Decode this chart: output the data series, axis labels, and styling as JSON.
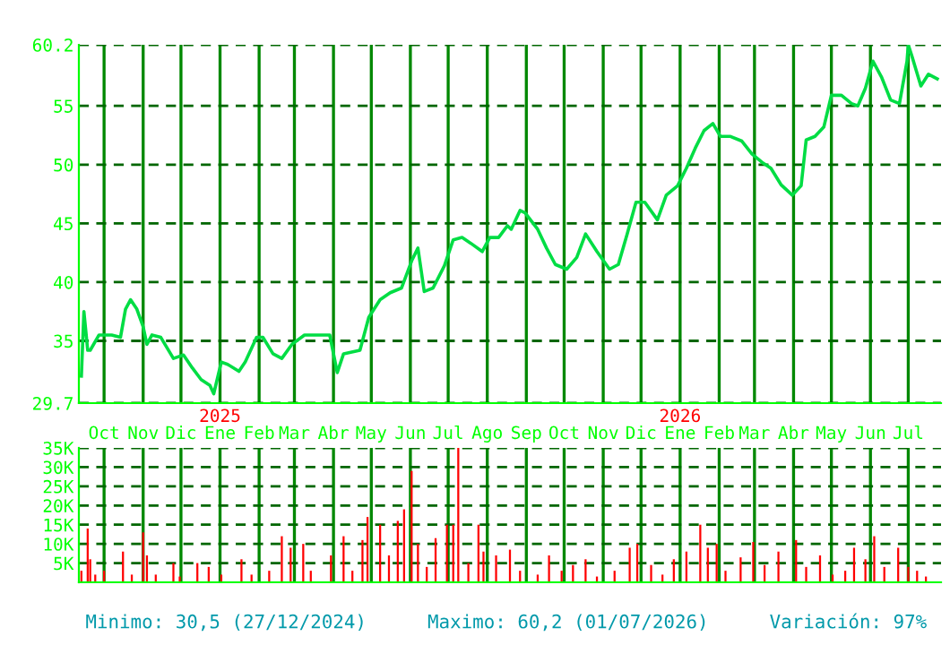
{
  "chart_data": [
    {
      "type": "line",
      "x": [
        "2024-09-13",
        "2024-09-15",
        "2024-09-18",
        "2024-09-20",
        "2024-09-27",
        "2024-10-07",
        "2024-10-14",
        "2024-10-18",
        "2024-10-22",
        "2024-10-27",
        "2024-11-01",
        "2024-11-04",
        "2024-11-08",
        "2024-11-15",
        "2024-11-25",
        "2024-12-03",
        "2024-12-10",
        "2024-12-17",
        "2024-12-24",
        "2024-12-27",
        "2025-01-02",
        "2025-01-07",
        "2025-01-16",
        "2025-01-21",
        "2025-01-30",
        "2025-02-04",
        "2025-02-12",
        "2025-02-19",
        "2025-02-27",
        "2025-03-09",
        "2025-03-21",
        "2025-03-29",
        "2025-04-04",
        "2025-04-09",
        "2025-04-22",
        "2025-04-29",
        "2025-05-08",
        "2025-05-16",
        "2025-05-25",
        "2025-06-02",
        "2025-06-07",
        "2025-06-12",
        "2025-06-19",
        "2025-06-28",
        "2025-07-05",
        "2025-07-12",
        "2025-07-19",
        "2025-07-28",
        "2025-08-03",
        "2025-08-10",
        "2025-08-17",
        "2025-08-20",
        "2025-08-27",
        "2025-08-31",
        "2025-09-10",
        "2025-09-17",
        "2025-09-24",
        "2025-10-03",
        "2025-10-11",
        "2025-10-18",
        "2025-10-27",
        "2025-11-06",
        "2025-11-13",
        "2025-11-20",
        "2025-11-27",
        "2025-12-04",
        "2025-12-14",
        "2025-12-21",
        "2025-12-30",
        "2026-01-06",
        "2026-01-13",
        "2026-01-20",
        "2026-01-27",
        "2026-02-02",
        "2026-02-10",
        "2026-02-19",
        "2026-02-27",
        "2026-03-07",
        "2026-03-14",
        "2026-03-22",
        "2026-03-31",
        "2026-04-07",
        "2026-04-11",
        "2026-04-18",
        "2026-04-25",
        "2026-05-01",
        "2026-05-09",
        "2026-05-17",
        "2026-05-22",
        "2026-05-28",
        "2026-06-03",
        "2026-06-10",
        "2026-06-17",
        "2026-06-24",
        "2026-06-30",
        "2026-07-01",
        "2026-07-04",
        "2026-07-11",
        "2026-07-17",
        "2026-07-24"
      ],
      "series": [
        {
          "color": "#00dd44",
          "values": [
            32.0,
            37.5,
            34.2,
            34.2,
            35.5,
            35.5,
            35.3,
            37.7,
            38.5,
            37.7,
            36.2,
            34.7,
            35.5,
            35.3,
            33.5,
            33.8,
            32.7,
            31.7,
            31.2,
            30.5,
            33.2,
            33.0,
            32.4,
            33.2,
            35.3,
            35.3,
            33.9,
            33.5,
            34.7,
            35.5,
            35.5,
            35.5,
            32.3,
            33.9,
            34.2,
            37.0,
            38.5,
            39.1,
            39.5,
            41.8,
            42.9,
            39.2,
            39.5,
            41.4,
            43.6,
            43.8,
            43.3,
            42.6,
            43.8,
            43.8,
            44.8,
            44.5,
            46.1,
            45.9,
            44.5,
            42.9,
            41.5,
            41.1,
            42.1,
            44.1,
            42.6,
            41.1,
            41.5,
            44.1,
            46.8,
            46.8,
            45.3,
            47.4,
            48.2,
            49.7,
            51.4,
            52.9,
            53.5,
            52.4,
            52.4,
            52.0,
            50.9,
            50.2,
            49.7,
            48.3,
            47.4,
            48.2,
            52.1,
            52.4,
            53.2,
            55.9,
            55.9,
            55.2,
            55.0,
            56.5,
            58.8,
            57.4,
            55.5,
            55.2,
            58.8,
            60.2,
            59.2,
            56.7,
            57.7,
            57.3
          ]
        }
      ],
      "xlim": [
        "2024-09-11",
        "2026-07-27"
      ],
      "xticks": [
        {
          "value": "2024-10-01",
          "label": "Oct"
        },
        {
          "value": "2024-11-01",
          "label": "Nov"
        },
        {
          "value": "2024-12-01",
          "label": "Dic"
        },
        {
          "value": "2025-01-01",
          "label": "Ene"
        },
        {
          "value": "2025-02-01",
          "label": "Feb"
        },
        {
          "value": "2025-03-01",
          "label": "Mar"
        },
        {
          "value": "2025-04-01",
          "label": "Abr"
        },
        {
          "value": "2025-05-01",
          "label": "May"
        },
        {
          "value": "2025-06-01",
          "label": "Jun"
        },
        {
          "value": "2025-07-01",
          "label": "Jul"
        },
        {
          "value": "2025-08-01",
          "label": "Ago"
        },
        {
          "value": "2025-09-01",
          "label": "Sep"
        },
        {
          "value": "2025-10-01",
          "label": "Oct"
        },
        {
          "value": "2025-11-01",
          "label": "Nov"
        },
        {
          "value": "2025-12-01",
          "label": "Dic"
        },
        {
          "value": "2026-01-01",
          "label": "Ene"
        },
        {
          "value": "2026-02-01",
          "label": "Feb"
        },
        {
          "value": "2026-03-01",
          "label": "Mar"
        },
        {
          "value": "2026-04-01",
          "label": "Abr"
        },
        {
          "value": "2026-05-01",
          "label": "May"
        },
        {
          "value": "2026-06-01",
          "label": "Jun"
        },
        {
          "value": "2026-07-01",
          "label": "Jul"
        }
      ],
      "ylim": [
        29.7,
        60.2
      ],
      "yticks": [
        29.7,
        35,
        40,
        45,
        50,
        55,
        60.2
      ],
      "grid": true,
      "annotations": [
        "2025",
        "2026"
      ]
    },
    {
      "type": "bar",
      "x": [
        "2024-09-13",
        "2024-09-18",
        "2024-09-20",
        "2024-09-24",
        "2024-10-01",
        "2024-10-16",
        "2024-10-23",
        "2024-11-01",
        "2024-11-04",
        "2024-11-11",
        "2024-11-25",
        "2024-11-30",
        "2024-12-14",
        "2024-12-23",
        "2025-01-02",
        "2025-01-18",
        "2025-01-26",
        "2025-02-09",
        "2025-02-19",
        "2025-02-26",
        "2025-03-08",
        "2025-03-14",
        "2025-03-30",
        "2025-04-09",
        "2025-04-16",
        "2025-04-24",
        "2025-04-28",
        "2025-05-08",
        "2025-05-15",
        "2025-05-22",
        "2025-05-27",
        "2025-06-02",
        "2025-06-07",
        "2025-06-14",
        "2025-06-21",
        "2025-06-30",
        "2025-07-05",
        "2025-07-09",
        "2025-07-17",
        "2025-07-25",
        "2025-07-29",
        "2025-08-08",
        "2025-08-19",
        "2025-08-27",
        "2025-09-10",
        "2025-09-19",
        "2025-09-29",
        "2025-10-08",
        "2025-10-18",
        "2025-10-27",
        "2025-11-10",
        "2025-11-22",
        "2025-11-28",
        "2025-12-09",
        "2025-12-18",
        "2025-12-27",
        "2026-01-06",
        "2026-01-17",
        "2026-01-23",
        "2026-01-30",
        "2026-02-06",
        "2026-02-18",
        "2026-02-28",
        "2026-03-09",
        "2026-03-20",
        "2026-04-03",
        "2026-04-11",
        "2026-04-22",
        "2026-05-02",
        "2026-05-12",
        "2026-05-19",
        "2026-05-28",
        "2026-06-04",
        "2026-06-12",
        "2026-06-23",
        "2026-07-01",
        "2026-07-08",
        "2026-07-15"
      ],
      "series": [
        {
          "color": "#ff0000",
          "values": [
            3000,
            14000,
            6000,
            2000,
            3000,
            8000,
            2000,
            13000,
            7000,
            2000,
            5000,
            1500,
            5000,
            4000,
            2000,
            6000,
            2000,
            3000,
            12000,
            9000,
            10000,
            3000,
            7000,
            12000,
            3000,
            11000,
            17000,
            15000,
            7000,
            16000,
            19000,
            29000,
            10000,
            4000,
            11500,
            15000,
            15000,
            35000,
            5000,
            15000,
            8000,
            7000,
            8500,
            3000,
            2000,
            7000,
            3000,
            4500,
            6000,
            1500,
            3000,
            9000,
            10000,
            4500,
            2000,
            6000,
            8000,
            15000,
            9000,
            10000,
            3000,
            6500,
            10500,
            4500,
            8000,
            11000,
            4000,
            7000,
            2000,
            3000,
            9000,
            6000,
            12000,
            4000,
            9000,
            4000,
            3000,
            1500
          ]
        }
      ],
      "xlim": [
        "2024-09-11",
        "2026-07-27"
      ],
      "xticks": [
        {
          "value": "2024-10-01",
          "label": null
        },
        {
          "value": "2024-11-01",
          "label": null
        },
        {
          "value": "2024-12-01",
          "label": null
        },
        {
          "value": "2025-01-01",
          "label": null
        },
        {
          "value": "2025-02-01",
          "label": null
        },
        {
          "value": "2025-03-01",
          "label": null
        },
        {
          "value": "2025-04-01",
          "label": null
        },
        {
          "value": "2025-05-01",
          "label": null
        },
        {
          "value": "2025-06-01",
          "label": null
        },
        {
          "value": "2025-07-01",
          "label": null
        },
        {
          "value": "2025-08-01",
          "label": null
        },
        {
          "value": "2025-09-01",
          "label": null
        },
        {
          "value": "2025-10-01",
          "label": null
        },
        {
          "value": "2025-11-01",
          "label": null
        },
        {
          "value": "2025-12-01",
          "label": null
        },
        {
          "value": "2026-01-01",
          "label": null
        },
        {
          "value": "2026-02-01",
          "label": null
        },
        {
          "value": "2026-03-01",
          "label": null
        },
        {
          "value": "2026-04-01",
          "label": null
        },
        {
          "value": "2026-05-01",
          "label": null
        },
        {
          "value": "2026-06-01",
          "label": null
        },
        {
          "value": "2026-07-01",
          "label": null
        }
      ],
      "ylim": [
        0,
        35000
      ],
      "yticks": [
        {
          "value": 5000,
          "label": "5K"
        },
        {
          "value": 10000,
          "label": "10K"
        },
        {
          "value": 15000,
          "label": "15K"
        },
        {
          "value": 20000,
          "label": "20K"
        },
        {
          "value": 25000,
          "label": "25K"
        },
        {
          "value": 30000,
          "label": "30K"
        },
        {
          "value": 35000,
          "label": "35K"
        }
      ],
      "grid": true,
      "tick_labels": "y",
      "annotations": [
        "Minimo: 30,5 (27/12/2024)",
        "Maximo: 60,2 (01/07/2026)",
        "Variación: 97%"
      ]
    }
  ]
}
